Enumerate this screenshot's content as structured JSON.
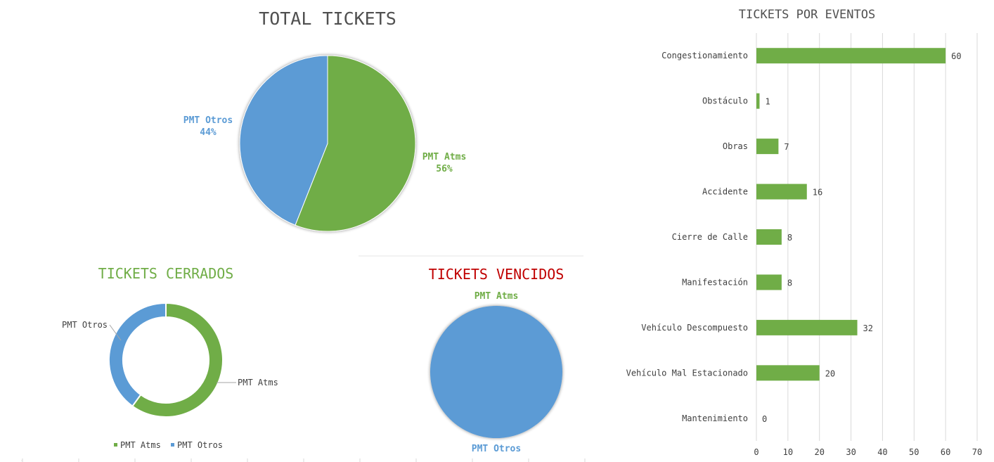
{
  "colors": {
    "green": "#70ad47",
    "blue": "#5b9bd5",
    "red": "#c00000",
    "text": "#404040",
    "grid": "#d9d9d9"
  },
  "chart_data": [
    {
      "type": "pie",
      "title": "TOTAL TICKETS",
      "slices": [
        {
          "name": "PMT Atms",
          "value": 56,
          "label": "56%",
          "color": "#70ad47"
        },
        {
          "name": "PMT Otros",
          "value": 44,
          "label": "44%",
          "color": "#5b9bd5"
        }
      ]
    },
    {
      "type": "pie",
      "variant": "doughnut",
      "title": "TICKETS CERRADOS",
      "slices": [
        {
          "name": "PMT Atms",
          "value": 60,
          "color": "#70ad47"
        },
        {
          "name": "PMT Otros",
          "value": 40,
          "color": "#5b9bd5"
        }
      ],
      "legend": [
        "PMT Atms",
        "PMT Otros"
      ],
      "legend_position": "bottom"
    },
    {
      "type": "pie",
      "title": "TICKETS VENCIDOS",
      "slices": [
        {
          "name": "PMT Atms",
          "value": 0,
          "color": "#70ad47"
        },
        {
          "name": "PMT Otros",
          "value": 100,
          "color": "#5b9bd5"
        }
      ]
    },
    {
      "type": "bar",
      "orientation": "horizontal",
      "title": "TICKETS POR EVENTOS",
      "categories": [
        "Congestionamiento",
        "Obstáculo",
        "Obras",
        "Accidente",
        "Cierre de Calle",
        "Manifestación",
        "Vehículo Descompuesto",
        "Vehículo Mal Estacionado",
        "Mantenimiento"
      ],
      "values": [
        60,
        1,
        7,
        16,
        8,
        8,
        32,
        20,
        0
      ],
      "xlim": [
        0,
        70
      ],
      "xticks": [
        "0",
        "10",
        "20",
        "30",
        "40",
        "50",
        "60",
        "70"
      ],
      "grid": true,
      "color": "#70ad47"
    }
  ]
}
